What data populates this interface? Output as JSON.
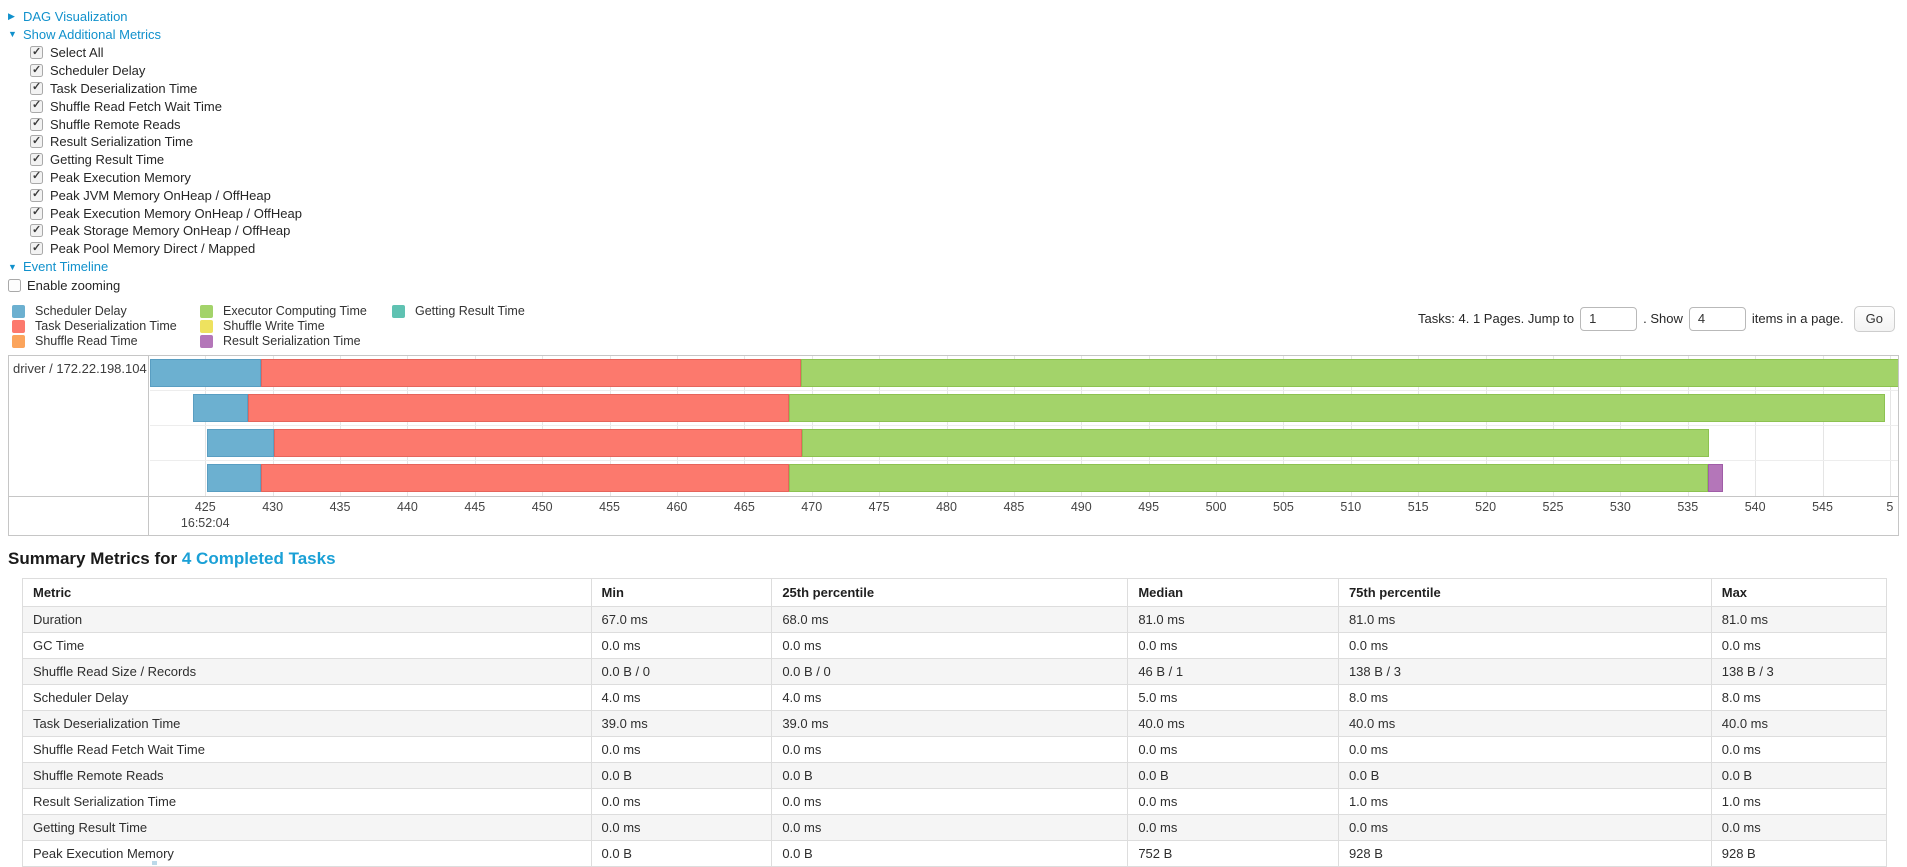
{
  "palette": {
    "scheduler_delay": {
      "fill": "#6CB0D0",
      "border": "#599EC2"
    },
    "task_deserialization": {
      "fill": "#FC796D",
      "border": "#E5655C"
    },
    "shuffle_read": {
      "fill": "#FBA45C",
      "border": "#E6903F"
    },
    "executor_computing": {
      "fill": "#A3D36A",
      "border": "#8DC251"
    },
    "shuffle_write": {
      "fill": "#EEE25F",
      "border": "#D9CC47"
    },
    "result_serialization": {
      "fill": "#B476B9",
      "border": "#A05DA7"
    },
    "getting_result": {
      "fill": "#5FC2B2",
      "border": "#49AE9D"
    },
    "link_color": "#1191cc"
  },
  "controls": {
    "dag_link": "DAG Visualization",
    "metrics_link": "Show Additional Metrics",
    "timeline_link": "Event Timeline",
    "enable_zooming": "Enable zooming",
    "checkboxes": [
      {
        "label": "Select All",
        "checked": true
      },
      {
        "label": "Scheduler Delay",
        "checked": true
      },
      {
        "label": "Task Deserialization Time",
        "checked": true
      },
      {
        "label": "Shuffle Read Fetch Wait Time",
        "checked": true
      },
      {
        "label": "Shuffle Remote Reads",
        "checked": true
      },
      {
        "label": "Result Serialization Time",
        "checked": true
      },
      {
        "label": "Getting Result Time",
        "checked": true
      },
      {
        "label": "Peak Execution Memory",
        "checked": true
      },
      {
        "label": "Peak JVM Memory OnHeap / OffHeap",
        "checked": true
      },
      {
        "label": "Peak Execution Memory OnHeap / OffHeap",
        "checked": true
      },
      {
        "label": "Peak Storage Memory OnHeap / OffHeap",
        "checked": true
      },
      {
        "label": "Peak Pool Memory Direct / Mapped",
        "checked": true
      }
    ]
  },
  "legend": {
    "columns": [
      [
        {
          "label": "Scheduler Delay",
          "metric": "scheduler_delay"
        },
        {
          "label": "Task Deserialization Time",
          "metric": "task_deserialization"
        },
        {
          "label": "Shuffle Read Time",
          "metric": "shuffle_read"
        }
      ],
      [
        {
          "label": "Executor Computing Time",
          "metric": "executor_computing"
        },
        {
          "label": "Shuffle Write Time",
          "metric": "shuffle_write"
        },
        {
          "label": "Result Serialization Time",
          "metric": "result_serialization"
        }
      ],
      [
        {
          "label": "Getting Result Time",
          "metric": "getting_result"
        }
      ]
    ]
  },
  "pagination": {
    "prefix": "Tasks: 4. 1 Pages. Jump to",
    "jump_value": "1",
    "middle": ". Show",
    "show_value": "4",
    "suffix": "items in a page.",
    "go_label": "Go"
  },
  "event_timeline": {
    "type": "timeline",
    "group_label": "driver / 172.22.198.104",
    "axis": {
      "min": 420.9,
      "max": 550.6,
      "time_label": "16:52:04",
      "time_label_value": 425,
      "ticks": [
        {
          "label": "425",
          "value": 425
        },
        {
          "label": "430",
          "value": 430
        },
        {
          "label": "435",
          "value": 435
        },
        {
          "label": "440",
          "value": 440
        },
        {
          "label": "445",
          "value": 445
        },
        {
          "label": "450",
          "value": 450
        },
        {
          "label": "455",
          "value": 455
        },
        {
          "label": "460",
          "value": 460
        },
        {
          "label": "465",
          "value": 465
        },
        {
          "label": "470",
          "value": 470
        },
        {
          "label": "475",
          "value": 475
        },
        {
          "label": "480",
          "value": 480
        },
        {
          "label": "485",
          "value": 485
        },
        {
          "label": "490",
          "value": 490
        },
        {
          "label": "495",
          "value": 495
        },
        {
          "label": "500",
          "value": 500
        },
        {
          "label": "505",
          "value": 505
        },
        {
          "label": "510",
          "value": 510
        },
        {
          "label": "515",
          "value": 515
        },
        {
          "label": "520",
          "value": 520
        },
        {
          "label": "525",
          "value": 525
        },
        {
          "label": "530",
          "value": 530
        },
        {
          "label": "535",
          "value": 535
        },
        {
          "label": "540",
          "value": 540
        },
        {
          "label": "545",
          "value": 545
        },
        {
          "label": "5",
          "value": 550
        }
      ]
    },
    "rows": [
      {
        "segments": [
          {
            "metric": "scheduler_delay",
            "from": 420.9,
            "to": 429.1
          },
          {
            "metric": "task_deserialization",
            "from": 429.1,
            "to": 469.2
          },
          {
            "metric": "executor_computing",
            "from": 469.2,
            "to": 550.7
          }
        ]
      },
      {
        "segments": [
          {
            "metric": "scheduler_delay",
            "from": 424.1,
            "to": 428.2
          },
          {
            "metric": "task_deserialization",
            "from": 428.2,
            "to": 468.3
          },
          {
            "metric": "executor_computing",
            "from": 468.3,
            "to": 549.6
          }
        ]
      },
      {
        "segments": [
          {
            "metric": "scheduler_delay",
            "from": 425.1,
            "to": 430.1
          },
          {
            "metric": "task_deserialization",
            "from": 430.1,
            "to": 469.3
          },
          {
            "metric": "executor_computing",
            "from": 469.3,
            "to": 536.6
          }
        ]
      },
      {
        "segments": [
          {
            "metric": "scheduler_delay",
            "from": 425.1,
            "to": 429.1
          },
          {
            "metric": "task_deserialization",
            "from": 429.1,
            "to": 468.3
          },
          {
            "metric": "executor_computing",
            "from": 468.3,
            "to": 536.5
          },
          {
            "metric": "result_serialization",
            "from": 536.5,
            "to": 537.6
          }
        ]
      }
    ]
  },
  "summary": {
    "heading_prefix": "Summary Metrics for",
    "heading_link": "4 Completed Tasks",
    "table": {
      "headers": [
        "Metric",
        "Min",
        "25th percentile",
        "Median",
        "75th percentile",
        "Max"
      ],
      "col_widths_pct": [
        30.5,
        9.7,
        19.1,
        11.3,
        20.0,
        9.4
      ],
      "rows": [
        [
          "Duration",
          "67.0 ms",
          "68.0 ms",
          "81.0 ms",
          "81.0 ms",
          "81.0 ms"
        ],
        [
          "GC Time",
          "0.0 ms",
          "0.0 ms",
          "0.0 ms",
          "0.0 ms",
          "0.0 ms"
        ],
        [
          "Shuffle Read Size / Records",
          "0.0 B / 0",
          "0.0 B / 0",
          "46 B / 1",
          "138 B / 3",
          "138 B / 3"
        ],
        [
          "Scheduler Delay",
          "4.0 ms",
          "4.0 ms",
          "5.0 ms",
          "8.0 ms",
          "8.0 ms"
        ],
        [
          "Task Deserialization Time",
          "39.0 ms",
          "39.0 ms",
          "40.0 ms",
          "40.0 ms",
          "40.0 ms"
        ],
        [
          "Shuffle Read Fetch Wait Time",
          "0.0 ms",
          "0.0 ms",
          "0.0 ms",
          "0.0 ms",
          "0.0 ms"
        ],
        [
          "Shuffle Remote Reads",
          "0.0 B",
          "0.0 B",
          "0.0 B",
          "0.0 B",
          "0.0 B"
        ],
        [
          "Result Serialization Time",
          "0.0 ms",
          "0.0 ms",
          "0.0 ms",
          "1.0 ms",
          "1.0 ms"
        ],
        [
          "Getting Result Time",
          "0.0 ms",
          "0.0 ms",
          "0.0 ms",
          "0.0 ms",
          "0.0 ms"
        ],
        [
          "Peak Execution Memory",
          "0.0 B",
          "0.0 B",
          "752 B",
          "928 B",
          "928 B"
        ]
      ]
    }
  }
}
